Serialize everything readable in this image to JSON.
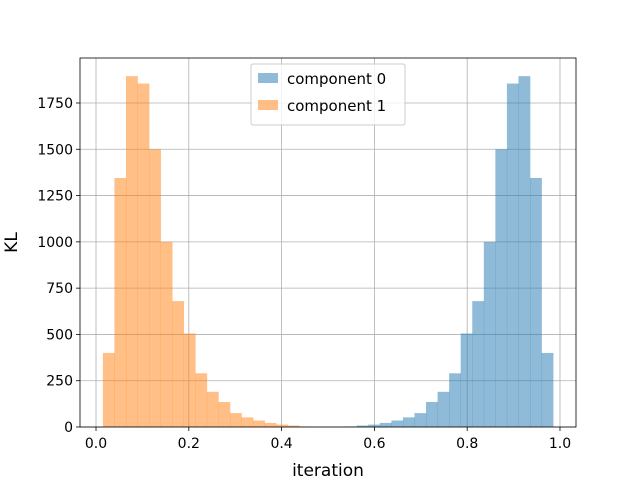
{
  "chart_data": {
    "type": "bar",
    "title": "",
    "xlabel": "iteration",
    "ylabel": "KL",
    "xlim": [
      -0.0345,
      1.0345
    ],
    "ylim": [
      0,
      1993
    ],
    "xticks": [
      0.0,
      0.2,
      0.4,
      0.6,
      0.8,
      1.0
    ],
    "xtick_labels": [
      "0.0",
      "0.2",
      "0.4",
      "0.6",
      "0.8",
      "1.0"
    ],
    "yticks": [
      0,
      250,
      500,
      750,
      1000,
      1250,
      1500,
      1750
    ],
    "ytick_labels": [
      "0",
      "250",
      "500",
      "750",
      "1000",
      "1250",
      "1500",
      "1750"
    ],
    "grid": true,
    "legend_position": "upper-center",
    "series": [
      {
        "name": "component 0",
        "color": "#1f77b4",
        "alpha": 0.5,
        "bin_edges": [
          0.537,
          0.5619,
          0.5868,
          0.6117,
          0.6366,
          0.6615,
          0.6864,
          0.7113,
          0.7362,
          0.7611,
          0.786,
          0.8109,
          0.8358,
          0.8607,
          0.8856,
          0.9105,
          0.9354,
          0.9603,
          0.9852
        ],
        "counts": [
          3,
          8,
          13,
          22,
          35,
          52,
          75,
          135,
          190,
          290,
          505,
          680,
          1000,
          1500,
          1855,
          1895,
          1345,
          400
        ]
      },
      {
        "name": "component 1",
        "color": "#ff7f0e",
        "alpha": 0.5,
        "bin_edges": [
          0.0148,
          0.0397,
          0.0646,
          0.0895,
          0.1144,
          0.1393,
          0.1642,
          0.1891,
          0.214,
          0.2389,
          0.2638,
          0.2887,
          0.3136,
          0.3385,
          0.3634,
          0.3883,
          0.4132,
          0.4381,
          0.463
        ],
        "counts": [
          400,
          1345,
          1895,
          1855,
          1500,
          1000,
          680,
          505,
          290,
          190,
          135,
          75,
          52,
          35,
          22,
          13,
          8,
          3
        ]
      }
    ]
  }
}
